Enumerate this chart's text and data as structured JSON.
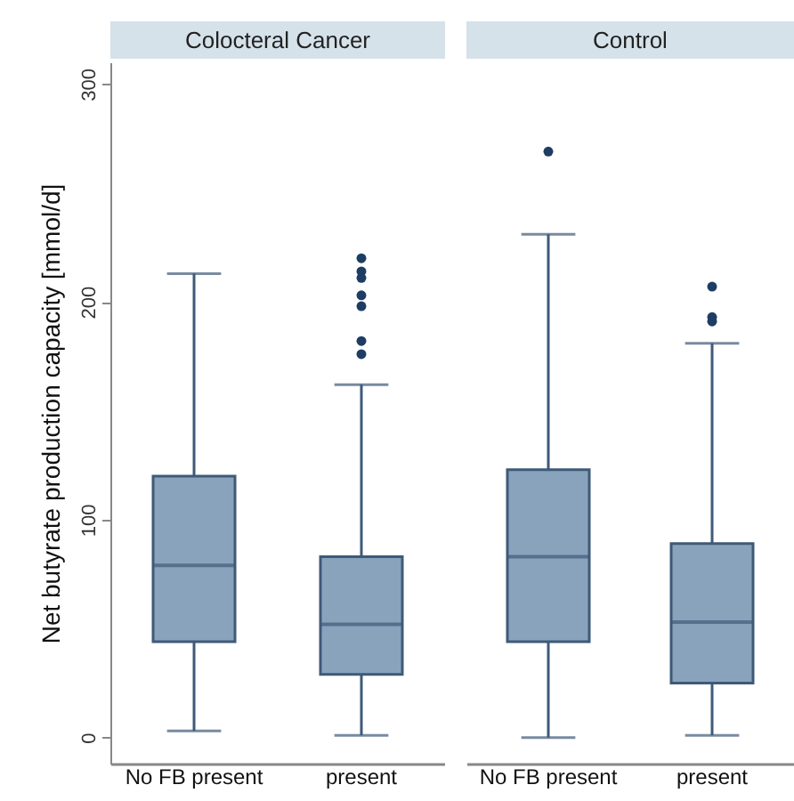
{
  "chart_data": [
    {
      "type": "box",
      "title": "Colocteral Cancer",
      "ylabel": "Net butyrate production capacity [mmol/d]",
      "categories": [
        "No FB present",
        "present"
      ],
      "ylim": [
        -12,
        310
      ],
      "yticks": [
        0,
        100,
        200,
        300
      ],
      "grid": false,
      "series": [
        {
          "color": "#8aa3bd",
          "boxes": [
            {
              "low": 3,
              "q1": 44,
              "median": 79,
              "q3": 120,
              "high": 213
            },
            {
              "low": 1,
              "q1": 29,
              "median": 52,
              "q3": 83,
              "high": 162,
              "outliers": [
                220,
                214,
                211,
                203,
                198,
                182,
                176
              ]
            }
          ]
        }
      ]
    },
    {
      "type": "box",
      "title": "Control",
      "categories": [
        "No FB present",
        "present"
      ],
      "ylim": [
        -12,
        310
      ],
      "yticks": [
        0,
        100,
        200,
        300
      ],
      "grid": false,
      "tick_labels": "x",
      "series": [
        {
          "color": "#8aa3bd",
          "boxes": [
            {
              "low": 0,
              "q1": 44,
              "median": 83,
              "q3": 123,
              "high": 231,
              "outliers": [
                269
              ]
            },
            {
              "low": 1,
              "q1": 25,
              "median": 53,
              "q3": 89,
              "high": 181,
              "outliers": [
                207,
                193,
                191
              ]
            }
          ]
        }
      ]
    }
  ]
}
